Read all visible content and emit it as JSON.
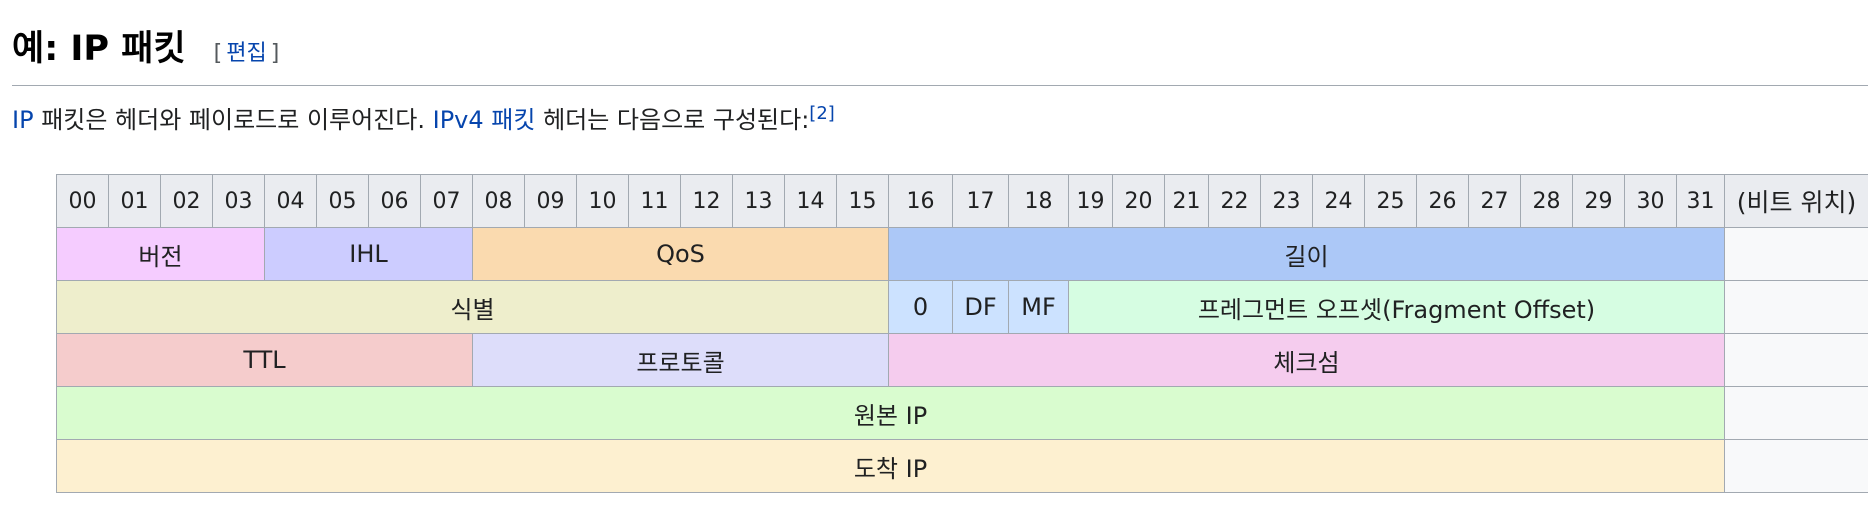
{
  "heading": {
    "title": "예: IP 패킷",
    "edit_open": "[",
    "edit_label": "편집",
    "edit_close": "]"
  },
  "intro": {
    "link_ip": "IP",
    "text_1": " 패킷은 헤더와 페이로드로 이루어진다. ",
    "link_ipv4": "IPv4 패킷",
    "text_2": " 헤더는 다음으로 구성된다:",
    "ref": "[2]"
  },
  "table": {
    "bit_headers": [
      "00",
      "01",
      "02",
      "03",
      "04",
      "05",
      "06",
      "07",
      "08",
      "09",
      "10",
      "11",
      "12",
      "13",
      "14",
      "15",
      "16",
      "17",
      "18",
      "19",
      "20",
      "21",
      "22",
      "23",
      "24",
      "25",
      "26",
      "27",
      "28",
      "29",
      "30",
      "31"
    ],
    "bit_position_label": "(비트 위치)",
    "rows": [
      [
        {
          "label": "버전",
          "span": 4,
          "color": "#f5ccff"
        },
        {
          "label": "IHL",
          "span": 4,
          "color": "#ccccff"
        },
        {
          "label": "QoS",
          "span": 8,
          "color": "#fadaaf"
        },
        {
          "label": "길이",
          "span": 16,
          "color": "#acc8f7"
        }
      ],
      [
        {
          "label": "식별",
          "span": 16,
          "color": "#eeeecc"
        },
        {
          "label": "0",
          "span": 1,
          "color": "#cce2ff"
        },
        {
          "label": "DF",
          "span": 1,
          "color": "#cce2ff"
        },
        {
          "label": "MF",
          "span": 1,
          "color": "#cce2ff"
        },
        {
          "label": "프레그먼트 오프셋(Fragment Offset)",
          "span": 13,
          "color": "#d6fde2"
        }
      ],
      [
        {
          "label": "TTL",
          "span": 8,
          "color": "#f5cccc"
        },
        {
          "label": "프로토콜",
          "span": 8,
          "color": "#ddddfa"
        },
        {
          "label": "체크섬",
          "span": 16,
          "color": "#f5ccee"
        }
      ],
      [
        {
          "label": "원본 IP",
          "span": 32,
          "color": "#d9fccf"
        }
      ],
      [
        {
          "label": "도착 IP",
          "span": 32,
          "color": "#fdf0d0"
        }
      ]
    ]
  }
}
